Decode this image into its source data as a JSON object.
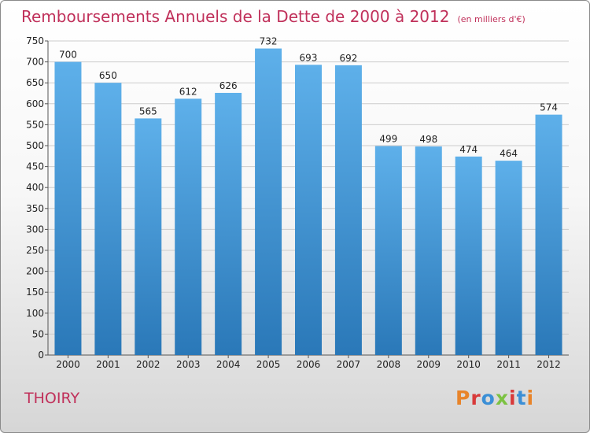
{
  "header": {
    "title": "Remboursements Annuels de la Dette de 2000 à 2012",
    "subtitle": "(en milliers d'€)"
  },
  "footer": {
    "place": "THOIRY",
    "logo": "Proxiti"
  },
  "colors": {
    "title": "#c0305a",
    "bar_top": "#5eb0ea",
    "bar_bottom": "#2a78b8",
    "grid": "#cccccc",
    "logo_letters": [
      "#e8842a",
      "#d83a3a",
      "#3b8fd6",
      "#7cc242",
      "#d83a3a",
      "#3b8fd6",
      "#e8842a"
    ]
  },
  "chart_data": {
    "type": "bar",
    "title": "Remboursements Annuels de la Dette de 2000 à 2012",
    "subtitle": "(en milliers d'€)",
    "categories": [
      "2000",
      "2001",
      "2002",
      "2003",
      "2004",
      "2005",
      "2006",
      "2007",
      "2008",
      "2009",
      "2010",
      "2011",
      "2012"
    ],
    "values": [
      700,
      650,
      565,
      612,
      626,
      732,
      693,
      692,
      499,
      498,
      474,
      464,
      574
    ],
    "ylim": [
      0,
      750
    ],
    "yticks": [
      0,
      50,
      100,
      150,
      200,
      250,
      300,
      350,
      400,
      450,
      500,
      550,
      600,
      650,
      700,
      750
    ],
    "grid": true,
    "data_labels": true
  }
}
